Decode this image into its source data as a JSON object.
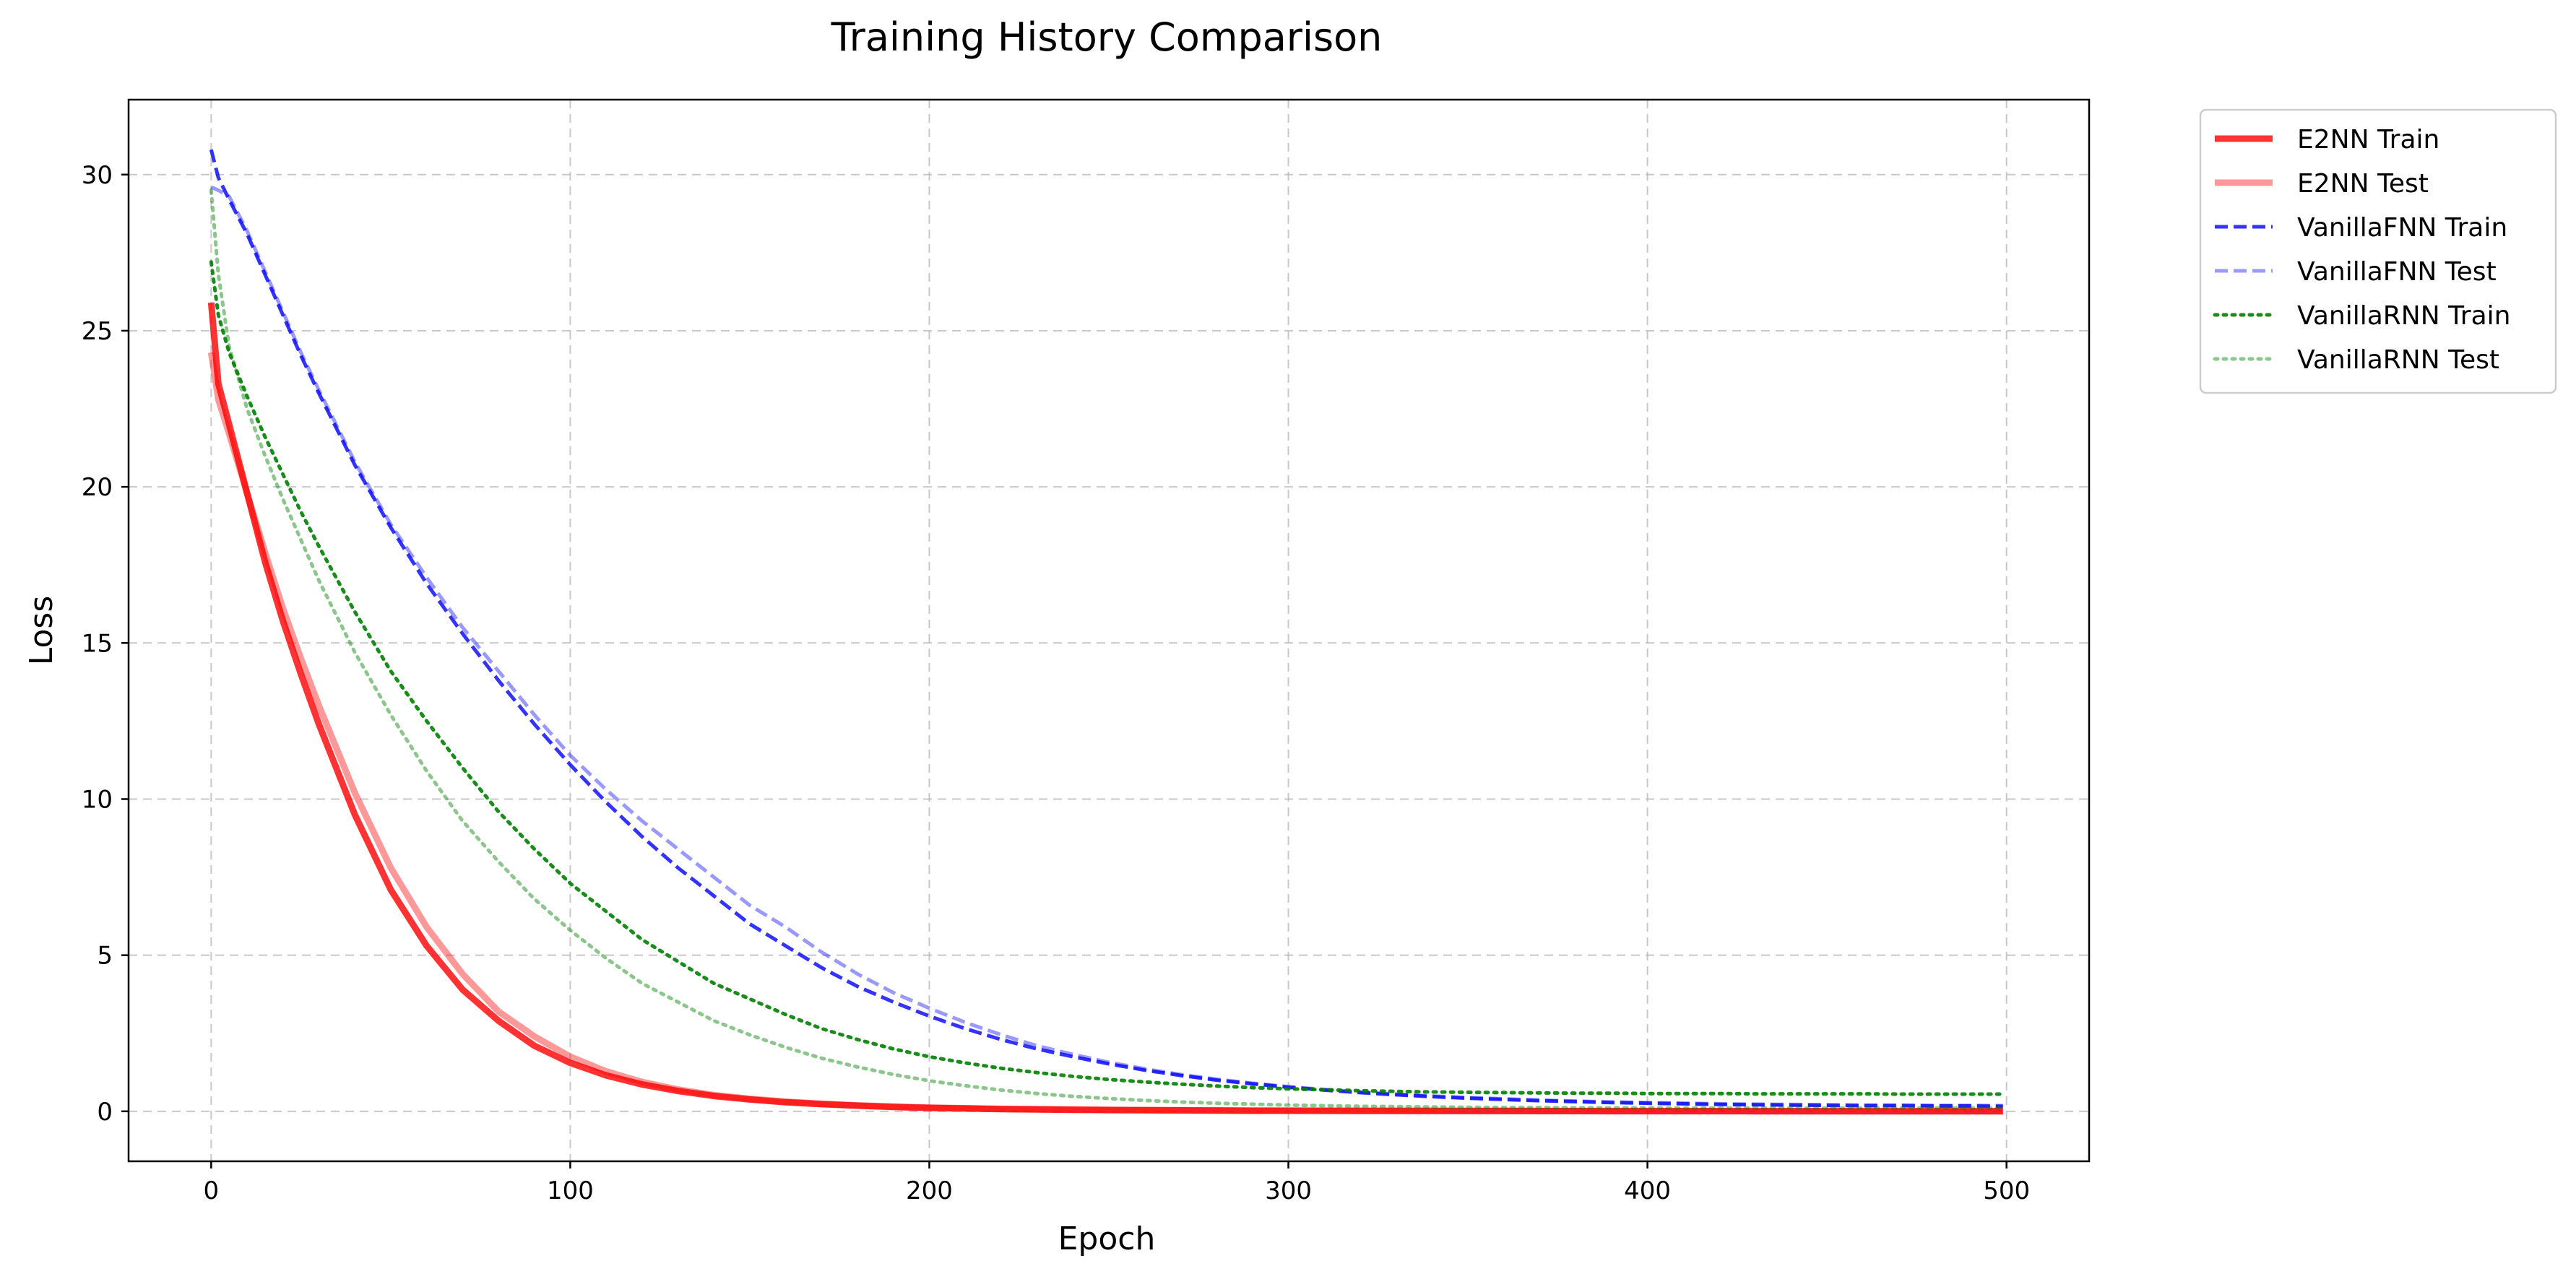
{
  "chart_data": {
    "type": "line",
    "title": "Training History Comparison",
    "xlabel": "Epoch",
    "ylabel": "Loss",
    "xlim": [
      -23,
      523
    ],
    "ylim": [
      -1.6,
      32.4
    ],
    "xticks": [
      0,
      100,
      200,
      300,
      400,
      500
    ],
    "yticks": [
      0,
      5,
      10,
      15,
      20,
      25,
      30
    ],
    "grid": true,
    "legend_position": "outside-top-right",
    "x": [
      0,
      2,
      5,
      10,
      15,
      20,
      25,
      30,
      40,
      50,
      60,
      70,
      80,
      90,
      100,
      110,
      120,
      130,
      140,
      150,
      160,
      170,
      180,
      190,
      200,
      210,
      220,
      230,
      240,
      250,
      260,
      270,
      280,
      290,
      300,
      310,
      320,
      330,
      340,
      350,
      360,
      370,
      380,
      390,
      400,
      410,
      420,
      430,
      440,
      450,
      460,
      470,
      480,
      490,
      499
    ],
    "series": [
      {
        "name": "E2NN Train",
        "color": "#ff0000",
        "opacity": 0.8,
        "dash": "solid",
        "width": 9,
        "values": [
          25.9,
          23.3,
          22.0,
          19.8,
          17.6,
          15.7,
          14.0,
          12.4,
          9.5,
          7.1,
          5.3,
          3.9,
          2.9,
          2.1,
          1.55,
          1.15,
          0.86,
          0.65,
          0.49,
          0.38,
          0.29,
          0.23,
          0.18,
          0.14,
          0.11,
          0.09,
          0.07,
          0.06,
          0.05,
          0.04,
          0.035,
          0.03,
          0.025,
          0.02,
          0.018,
          0.016,
          0.014,
          0.012,
          0.011,
          0.01,
          0.009,
          0.008,
          0.007,
          0.006,
          0.006,
          0.005,
          0.005,
          0.004,
          0.004,
          0.004,
          0.003,
          0.003,
          0.003,
          0.003,
          0.003
        ]
      },
      {
        "name": "E2NN Test",
        "color": "#ff0000",
        "opacity": 0.4,
        "dash": "solid",
        "width": 9,
        "values": [
          24.3,
          22.8,
          21.7,
          19.8,
          17.9,
          16.1,
          14.5,
          13.0,
          10.2,
          7.8,
          5.9,
          4.4,
          3.2,
          2.4,
          1.75,
          1.28,
          0.94,
          0.7,
          0.52,
          0.4,
          0.31,
          0.24,
          0.19,
          0.15,
          0.12,
          0.1,
          0.08,
          0.07,
          0.06,
          0.05,
          0.04,
          0.035,
          0.03,
          0.025,
          0.022,
          0.02,
          0.018,
          0.016,
          0.014,
          0.013,
          0.012,
          0.011,
          0.01,
          0.009,
          0.009,
          0.008,
          0.008,
          0.007,
          0.007,
          0.007,
          0.006,
          0.006,
          0.006,
          0.006,
          0.006
        ]
      },
      {
        "name": "VanillaFNN Train",
        "color": "#0000ff",
        "opacity": 0.8,
        "dash": "dashed",
        "width": 5,
        "values": [
          30.8,
          29.9,
          29.2,
          28.1,
          26.8,
          25.5,
          24.2,
          23.0,
          20.7,
          18.7,
          16.9,
          15.3,
          13.8,
          12.4,
          11.1,
          9.9,
          8.8,
          7.8,
          6.9,
          6.0,
          5.3,
          4.6,
          4.0,
          3.5,
          3.05,
          2.65,
          2.3,
          2.0,
          1.75,
          1.52,
          1.32,
          1.15,
          1.0,
          0.88,
          0.77,
          0.68,
          0.6,
          0.53,
          0.47,
          0.42,
          0.38,
          0.34,
          0.31,
          0.28,
          0.26,
          0.24,
          0.22,
          0.21,
          0.2,
          0.19,
          0.18,
          0.18,
          0.17,
          0.17,
          0.16
        ]
      },
      {
        "name": "VanillaFNN Test",
        "color": "#0000ff",
        "opacity": 0.4,
        "dash": "dashed",
        "width": 5,
        "values": [
          29.6,
          29.5,
          29.3,
          28.2,
          26.9,
          25.6,
          24.3,
          23.1,
          20.8,
          18.8,
          17.1,
          15.5,
          14.1,
          12.7,
          11.4,
          10.3,
          9.3,
          8.4,
          7.5,
          6.6,
          5.9,
          5.1,
          4.4,
          3.8,
          3.3,
          2.85,
          2.45,
          2.1,
          1.82,
          1.57,
          1.36,
          1.18,
          1.03,
          0.9,
          0.79,
          0.7,
          0.62,
          0.55,
          0.49,
          0.44,
          0.4,
          0.36,
          0.33,
          0.3,
          0.28,
          0.26,
          0.24,
          0.23,
          0.22,
          0.21,
          0.2,
          0.2,
          0.19,
          0.19,
          0.18
        ]
      },
      {
        "name": "VanillaRNN Train",
        "color": "#008000",
        "opacity": 0.9,
        "dash": "dotted",
        "width": 5,
        "values": [
          27.2,
          25.5,
          24.3,
          22.9,
          21.6,
          20.4,
          19.2,
          18.1,
          16.0,
          14.1,
          12.5,
          11.0,
          9.6,
          8.4,
          7.3,
          6.4,
          5.5,
          4.8,
          4.1,
          3.6,
          3.1,
          2.65,
          2.3,
          2.0,
          1.75,
          1.55,
          1.38,
          1.24,
          1.12,
          1.02,
          0.94,
          0.87,
          0.81,
          0.76,
          0.72,
          0.69,
          0.66,
          0.64,
          0.62,
          0.61,
          0.6,
          0.59,
          0.58,
          0.58,
          0.57,
          0.57,
          0.57,
          0.56,
          0.56,
          0.56,
          0.56,
          0.55,
          0.55,
          0.55,
          0.55
        ]
      },
      {
        "name": "VanillaRNN Test",
        "color": "#008000",
        "opacity": 0.45,
        "dash": "dotted",
        "width": 5,
        "values": [
          29.5,
          26.8,
          24.5,
          22.5,
          21.0,
          19.6,
          18.3,
          17.0,
          14.7,
          12.7,
          10.9,
          9.3,
          8.0,
          6.8,
          5.8,
          4.9,
          4.1,
          3.5,
          2.9,
          2.45,
          2.05,
          1.7,
          1.42,
          1.18,
          0.98,
          0.82,
          0.68,
          0.57,
          0.48,
          0.41,
          0.35,
          0.3,
          0.26,
          0.23,
          0.2,
          0.18,
          0.16,
          0.15,
          0.14,
          0.13,
          0.12,
          0.12,
          0.11,
          0.11,
          0.11,
          0.1,
          0.1,
          0.1,
          0.1,
          0.1,
          0.1,
          0.1,
          0.1,
          0.1,
          0.1
        ]
      }
    ]
  }
}
